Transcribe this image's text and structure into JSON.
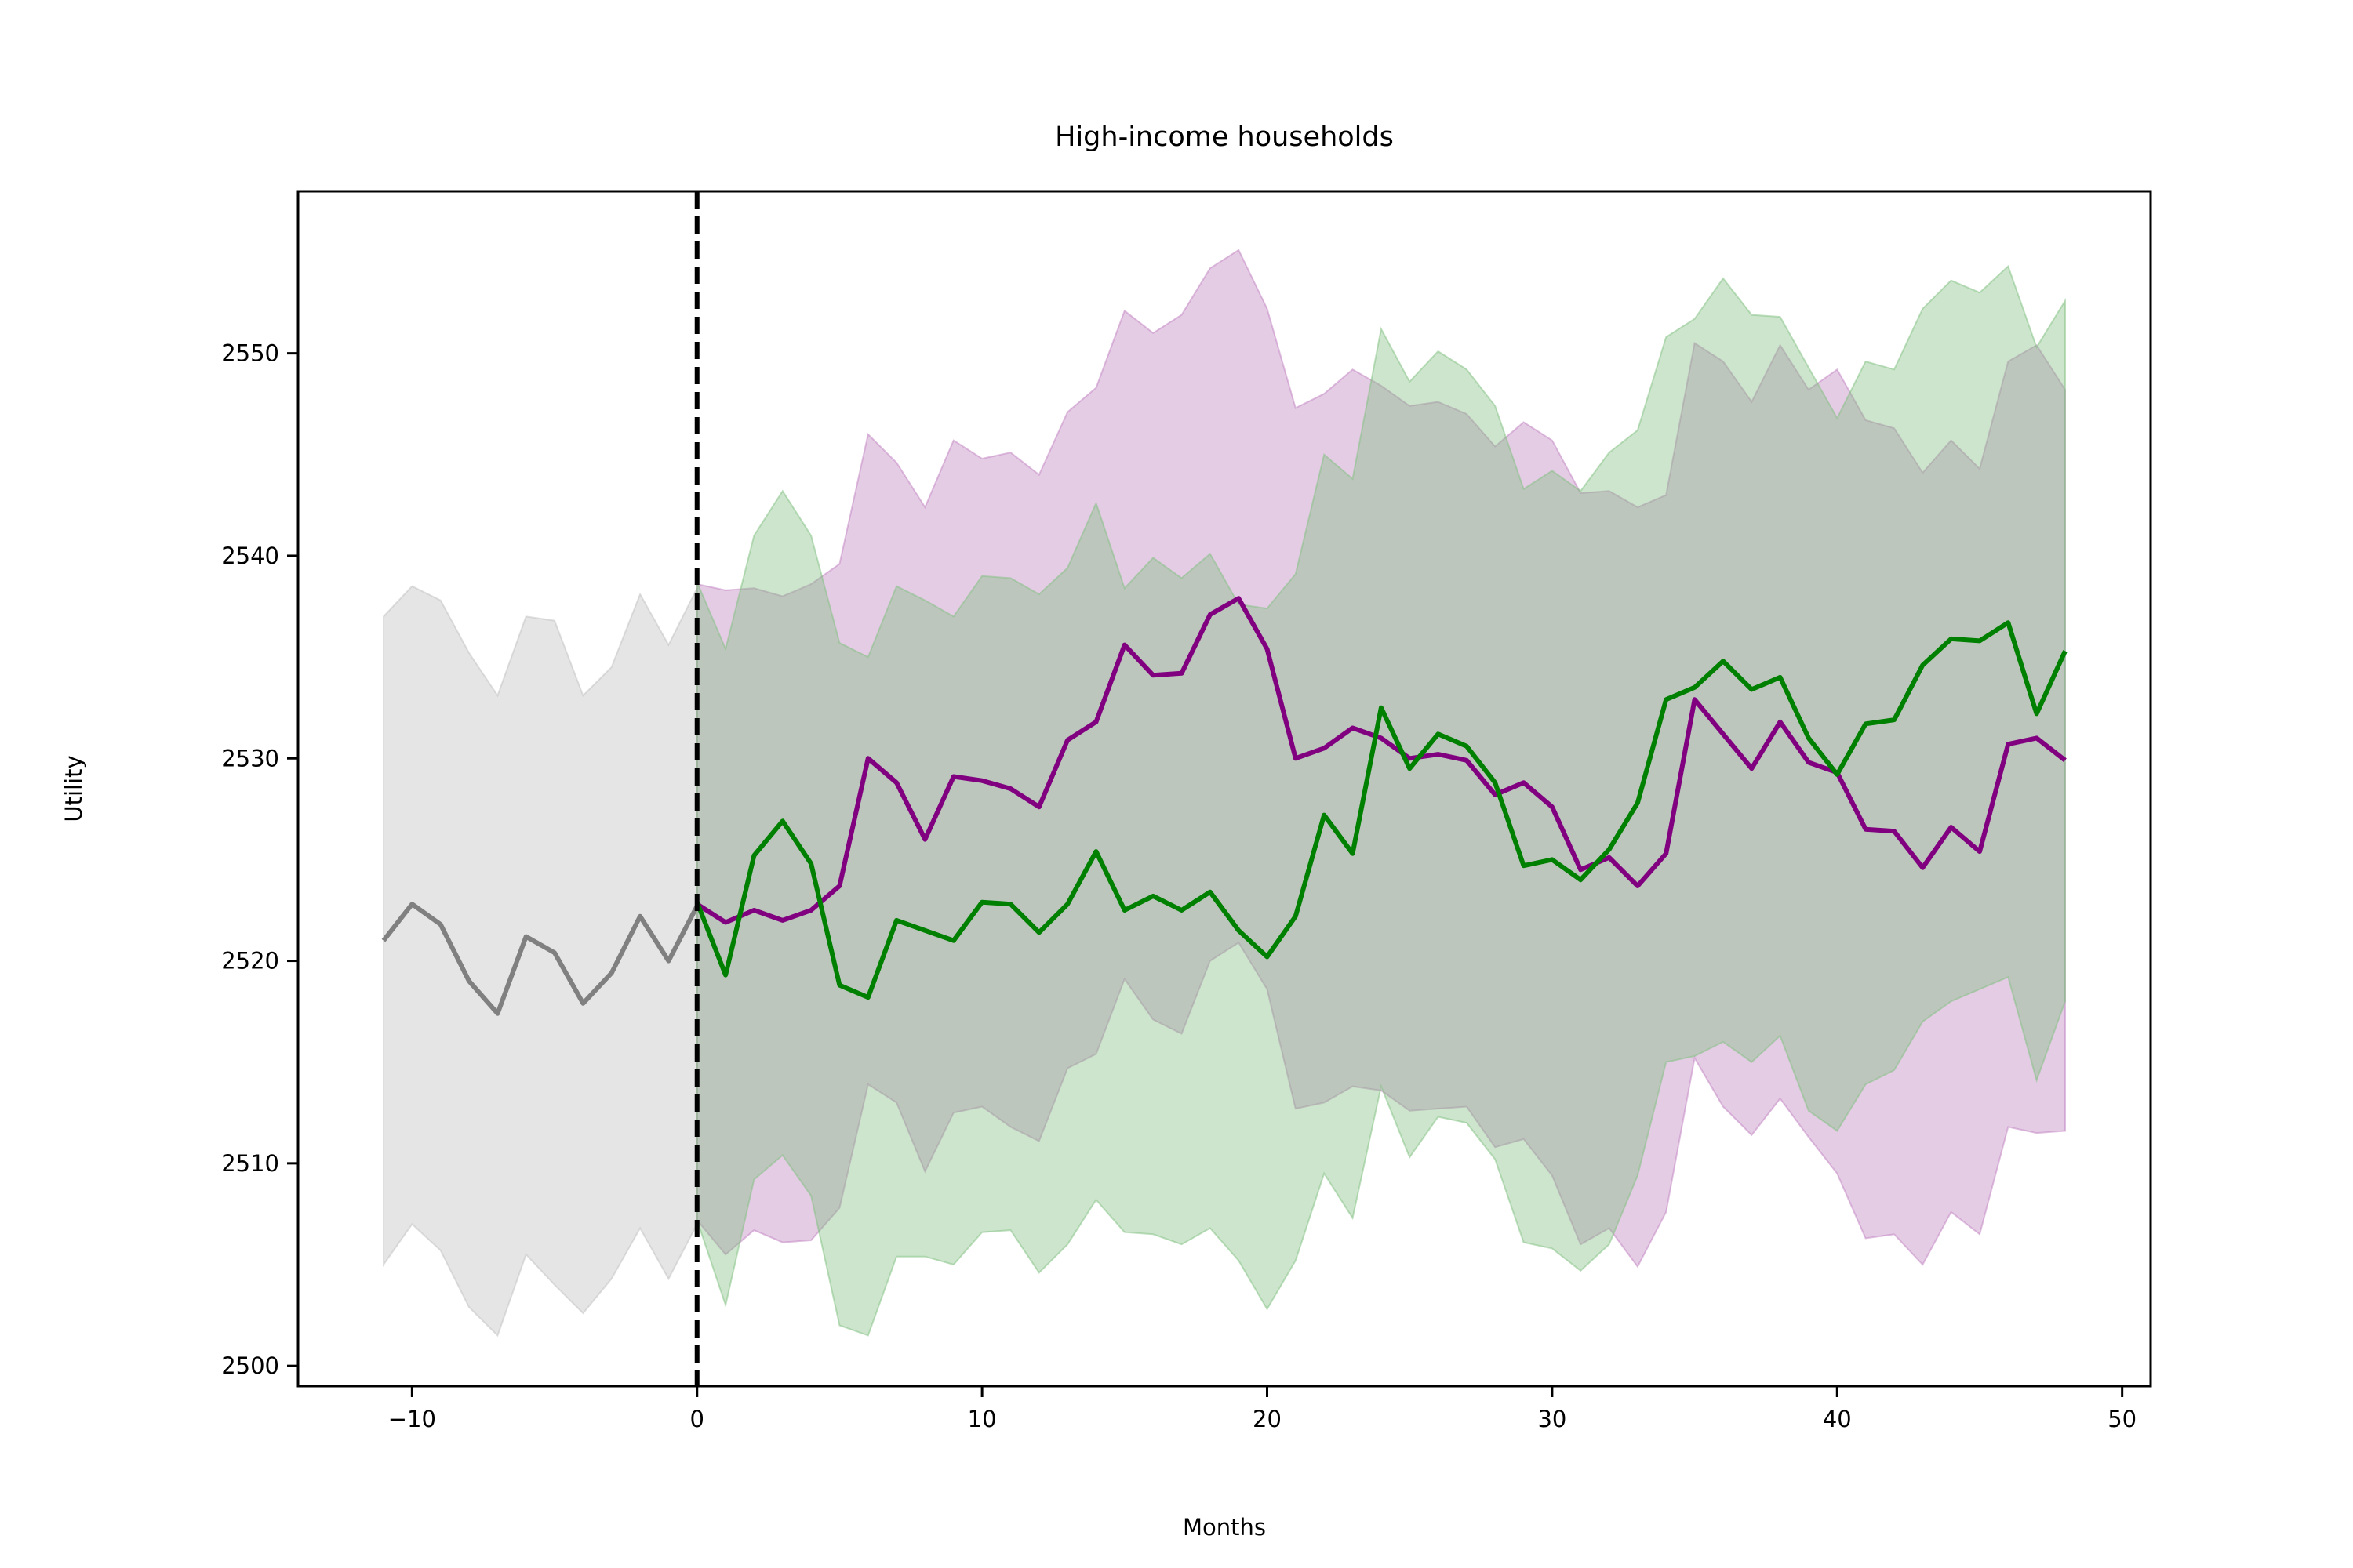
{
  "chart_data": {
    "type": "line",
    "title": "High-income households",
    "xlabel": "Months",
    "ylabel": "Utility",
    "xlim": [
      -14,
      51
    ],
    "ylim": [
      2499,
      2558
    ],
    "xticks": [
      -10,
      0,
      10,
      20,
      30,
      40,
      50
    ],
    "xtick_labels": [
      "−10",
      "0",
      "10",
      "20",
      "30",
      "40",
      "50"
    ],
    "yticks": [
      2500,
      2510,
      2520,
      2530,
      2540,
      2550
    ],
    "ytick_labels": [
      "2500",
      "2510",
      "2520",
      "2530",
      "2540",
      "2550"
    ],
    "grid": false,
    "vline": {
      "x": 0,
      "color": "#000000",
      "style": "dashed"
    },
    "series": [
      {
        "color": "#808080",
        "band_color": "#bfbfbf",
        "x": [
          -11,
          -10,
          -9,
          -8,
          -7,
          -6,
          -5,
          -4,
          -3,
          -2,
          -1,
          0
        ],
        "y": [
          2521,
          2522.8,
          2521.8,
          2519,
          2517.4,
          2521.2,
          2520.4,
          2517.9,
          2519.4,
          2522.2,
          2520,
          2522.7
        ],
        "upper": [
          2537,
          2538.5,
          2537.8,
          2535.2,
          2533.1,
          2537,
          2536.8,
          2533.1,
          2534.5,
          2538.1,
          2535.6,
          2538.4
        ],
        "lower": [
          2505,
          2507,
          2505.7,
          2502.9,
          2501.5,
          2505.5,
          2504,
          2502.6,
          2504.3,
          2506.8,
          2504.3,
          2507
        ]
      },
      {
        "color": "#800080",
        "band_color": "#bf7fbf",
        "x": [
          0,
          1,
          2,
          3,
          4,
          5,
          6,
          7,
          8,
          9,
          10,
          11,
          12,
          13,
          14,
          15,
          16,
          17,
          18,
          19,
          20,
          21,
          22,
          23,
          24,
          25,
          26,
          27,
          28,
          29,
          30,
          31,
          32,
          33,
          34,
          35,
          36,
          37,
          38,
          39,
          40,
          41,
          42,
          43,
          44,
          45,
          46,
          47,
          48
        ],
        "y": [
          2522.8,
          2521.9,
          2522.5,
          2522,
          2522.5,
          2523.7,
          2530,
          2528.8,
          2526,
          2529.1,
          2528.9,
          2528.5,
          2527.6,
          2530.9,
          2531.8,
          2535.6,
          2534.1,
          2534.2,
          2537.1,
          2537.9,
          2535.4,
          2530,
          2530.5,
          2531.5,
          2531,
          2530,
          2530.2,
          2529.9,
          2528.2,
          2528.8,
          2527.6,
          2524.5,
          2525.1,
          2523.7,
          2525.3,
          2532.9,
          2531.2,
          2529.5,
          2531.8,
          2529.8,
          2529.3,
          2526.5,
          2526.4,
          2524.6,
          2526.6,
          2525.4,
          2530.7,
          2531,
          2529.9
        ],
        "upper": [
          2538.6,
          2538.3,
          2538.4,
          2538,
          2538.6,
          2539.6,
          2546,
          2544.6,
          2542.4,
          2545.7,
          2544.8,
          2545.1,
          2544,
          2547.1,
          2548.3,
          2552.1,
          2551,
          2551.9,
          2554.2,
          2555.1,
          2552.2,
          2547.3,
          2548,
          2549.2,
          2548.4,
          2547.4,
          2547.6,
          2547,
          2545.4,
          2546.6,
          2545.7,
          2543.1,
          2543.2,
          2542.4,
          2543,
          2550.5,
          2549.6,
          2547.6,
          2550.4,
          2548.2,
          2549.2,
          2546.7,
          2546.3,
          2544.1,
          2545.7,
          2544.3,
          2549.6,
          2550.4,
          2548.2
        ],
        "lower": [
          2507.2,
          2505.5,
          2506.7,
          2506.1,
          2506.2,
          2507.8,
          2513.9,
          2513,
          2509.6,
          2512.5,
          2512.8,
          2511.8,
          2511.1,
          2514.7,
          2515.4,
          2519.1,
          2517.1,
          2516.4,
          2520,
          2520.9,
          2518.6,
          2512.7,
          2513,
          2513.8,
          2513.6,
          2512.6,
          2512.7,
          2512.8,
          2510.8,
          2511.2,
          2509.4,
          2506,
          2506.8,
          2504.9,
          2507.6,
          2515.2,
          2512.8,
          2511.4,
          2513.2,
          2511.3,
          2509.5,
          2506.3,
          2506.5,
          2505,
          2507.6,
          2506.5,
          2511.8,
          2511.5,
          2511.6
        ]
      },
      {
        "color": "#008000",
        "band_color": "#7fbf7f",
        "x": [
          0,
          1,
          2,
          3,
          4,
          5,
          6,
          7,
          8,
          9,
          10,
          11,
          12,
          13,
          14,
          15,
          16,
          17,
          18,
          19,
          20,
          21,
          22,
          23,
          24,
          25,
          26,
          27,
          28,
          29,
          30,
          31,
          32,
          33,
          34,
          35,
          36,
          37,
          38,
          39,
          40,
          41,
          42,
          43,
          44,
          45,
          46,
          47,
          48
        ],
        "y": [
          2522.9,
          2519.3,
          2525.2,
          2526.9,
          2524.8,
          2518.8,
          2518.2,
          2522,
          2521.5,
          2521,
          2522.9,
          2522.8,
          2521.4,
          2522.8,
          2525.4,
          2522.5,
          2523.2,
          2522.5,
          2523.4,
          2521.5,
          2520.2,
          2522.2,
          2527.2,
          2525.3,
          2532.5,
          2529.5,
          2531.2,
          2530.6,
          2528.8,
          2524.7,
          2525,
          2524,
          2525.5,
          2527.8,
          2532.9,
          2533.5,
          2534.8,
          2533.4,
          2534,
          2531,
          2529.2,
          2531.7,
          2531.9,
          2534.6,
          2535.9,
          2535.8,
          2536.7,
          2532.2,
          2535.3
        ],
        "upper": [
          2538.7,
          2535.4,
          2541,
          2543.2,
          2541,
          2535.7,
          2535,
          2538.5,
          2537.8,
          2537,
          2539,
          2538.9,
          2538.1,
          2539.4,
          2542.6,
          2538.4,
          2539.9,
          2538.9,
          2540.1,
          2537.6,
          2537.4,
          2539.1,
          2545,
          2543.8,
          2551.2,
          2548.6,
          2550.1,
          2549.2,
          2547.4,
          2543.3,
          2544.2,
          2543.2,
          2545.1,
          2546.2,
          2550.8,
          2551.7,
          2553.7,
          2551.9,
          2551.8,
          2549.3,
          2546.8,
          2549.6,
          2549.2,
          2552.2,
          2553.6,
          2553,
          2554.3,
          2550.3,
          2552.6
        ],
        "lower": [
          2507.2,
          2503,
          2509.2,
          2510.4,
          2508.4,
          2502,
          2501.5,
          2505.4,
          2505.4,
          2505,
          2506.6,
          2506.7,
          2504.6,
          2506,
          2508.2,
          2506.6,
          2506.5,
          2506,
          2506.8,
          2505.2,
          2502.8,
          2505.2,
          2509.5,
          2507.3,
          2513.8,
          2510.3,
          2512.3,
          2512,
          2510.2,
          2506.1,
          2505.8,
          2504.7,
          2506,
          2509.4,
          2515,
          2515.3,
          2516,
          2515,
          2516.3,
          2512.6,
          2511.6,
          2513.9,
          2514.6,
          2517,
          2518,
          2518.6,
          2519.2,
          2514.1,
          2518
        ]
      }
    ]
  }
}
